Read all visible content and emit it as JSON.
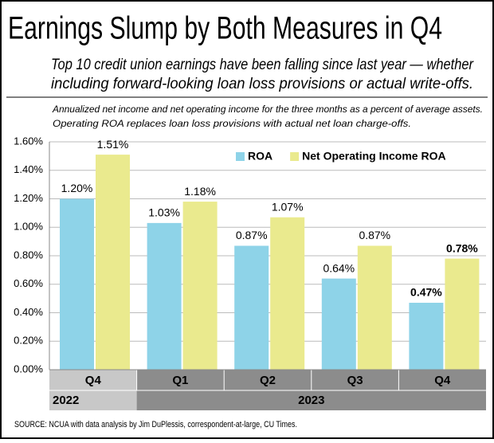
{
  "chart_data": {
    "type": "bar",
    "title": "Earnings Slump by Both Measures in Q4",
    "subtitle": [
      "Top 10 credit union earnings have been falling since last year — whether",
      "including forward-looking loan loss provisions or actual write-offs."
    ],
    "note": [
      "Annualized net income and net operating income for the three months as a percent of average assets.",
      "Operating ROA replaces loan loss provisions with actual net loan charge-offs."
    ],
    "categories": [
      "Q4",
      "Q1",
      "Q2",
      "Q3",
      "Q4"
    ],
    "groups": [
      {
        "label": "2022",
        "span": 1,
        "color": "#c8c8c8"
      },
      {
        "label": "2023",
        "span": 4,
        "color": "#8c8c8c"
      }
    ],
    "series": [
      {
        "name": "ROA",
        "color": "#8ed3e8",
        "values": [
          1.2,
          1.03,
          0.87,
          0.64,
          0.47
        ],
        "value_labels": [
          "1.20%",
          "1.03%",
          "0.87%",
          "0.64%",
          "0.47%"
        ]
      },
      {
        "name": "Net Operating Income ROA",
        "color": "#eaea8e",
        "values": [
          1.51,
          1.18,
          1.07,
          0.87,
          0.78
        ],
        "value_labels": [
          "1.51%",
          "1.18%",
          "1.07%",
          "0.87%",
          "0.78%"
        ]
      }
    ],
    "ylim": [
      0,
      1.6
    ],
    "yticks": [
      {
        "value": 0,
        "label": "0.00%"
      },
      {
        "value": 0.2,
        "label": "0.20%"
      },
      {
        "value": 0.4,
        "label": "0.40%"
      },
      {
        "value": 0.6,
        "label": "0.60%"
      },
      {
        "value": 0.8,
        "label": "0.80%"
      },
      {
        "value": 1.0,
        "label": "1.00%"
      },
      {
        "value": 1.2,
        "label": "1.20%"
      },
      {
        "value": 1.4,
        "label": "1.40%"
      },
      {
        "value": 1.6,
        "label": "1.60%"
      }
    ],
    "grid": true,
    "source": "SOURCE: NCUA with data analysis by Jim DuPlessis, correspondent-at-large, CU Times."
  }
}
